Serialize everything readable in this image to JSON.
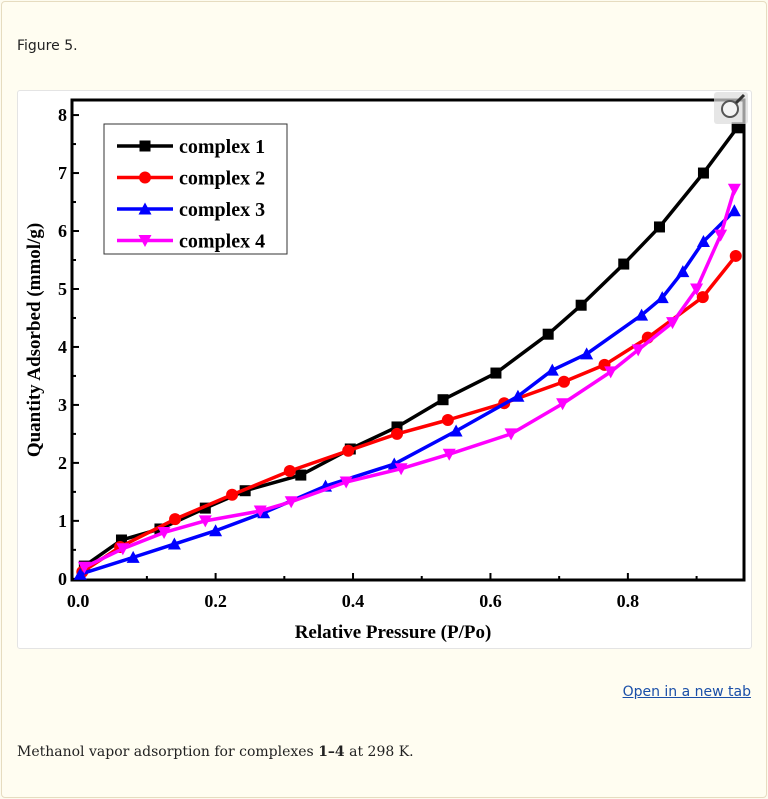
{
  "figure_label": "Figure 5.",
  "open_link": "Open in a new tab",
  "caption": {
    "before": "Methanol vapor adsorption for complexes ",
    "bold": "1–4",
    "after": " at 298 K."
  },
  "zoom_icon": "magnifier-icon",
  "chart_data": {
    "type": "line",
    "title": "",
    "xlabel": "Relative Pressure (P/Po)",
    "ylabel": "Quantity Adsorbed (mmol/g)",
    "xlim": [
      -0.009,
      0.969
    ],
    "ylim": [
      -0.02,
      8.26
    ],
    "xticks": [
      "0.0",
      "0.2",
      "0.4",
      "0.6",
      "0.8"
    ],
    "yticks": [
      "0",
      "1",
      "2",
      "3",
      "4",
      "5",
      "6",
      "7",
      "8"
    ],
    "grid": false,
    "legend_position": "top-left",
    "series": [
      {
        "name": "complex 1",
        "color": "#000000",
        "marker": "square",
        "x": [
          0.009,
          0.063,
          0.119,
          0.185,
          0.243,
          0.324,
          0.396,
          0.464,
          0.531,
          0.608,
          0.684,
          0.732,
          0.794,
          0.846,
          0.91,
          0.959
        ],
        "y": [
          0.22,
          0.67,
          0.86,
          1.22,
          1.52,
          1.79,
          2.24,
          2.62,
          3.09,
          3.55,
          4.22,
          4.72,
          5.43,
          6.07,
          7.0,
          7.78
        ]
      },
      {
        "name": "complex 2",
        "color": "#ff0000",
        "marker": "circle",
        "x": [
          0.006,
          0.061,
          0.141,
          0.224,
          0.308,
          0.393,
          0.464,
          0.538,
          0.62,
          0.707,
          0.766,
          0.829,
          0.909,
          0.957
        ],
        "y": [
          0.12,
          0.55,
          1.03,
          1.45,
          1.86,
          2.21,
          2.5,
          2.74,
          3.03,
          3.4,
          3.69,
          4.16,
          4.86,
          5.57
        ]
      },
      {
        "name": "complex 3",
        "color": "#0000ff",
        "marker": "triangle-up",
        "x": [
          0.003,
          0.08,
          0.14,
          0.2,
          0.27,
          0.36,
          0.46,
          0.55,
          0.64,
          0.69,
          0.74,
          0.82,
          0.85,
          0.88,
          0.91,
          0.955
        ],
        "y": [
          0.08,
          0.37,
          0.6,
          0.83,
          1.14,
          1.6,
          1.98,
          2.55,
          3.15,
          3.6,
          3.88,
          4.55,
          4.85,
          5.3,
          5.82,
          6.35
        ]
      },
      {
        "name": "complex 4",
        "color": "#ff00ff",
        "marker": "triangle-down",
        "x": [
          0.009,
          0.065,
          0.125,
          0.185,
          0.265,
          0.31,
          0.39,
          0.47,
          0.54,
          0.63,
          0.705,
          0.775,
          0.815,
          0.865,
          0.9,
          0.935,
          0.955
        ],
        "y": [
          0.2,
          0.52,
          0.8,
          1.0,
          1.17,
          1.33,
          1.67,
          1.9,
          2.15,
          2.5,
          3.02,
          3.57,
          3.95,
          4.42,
          5.0,
          5.93,
          6.72
        ]
      }
    ]
  }
}
